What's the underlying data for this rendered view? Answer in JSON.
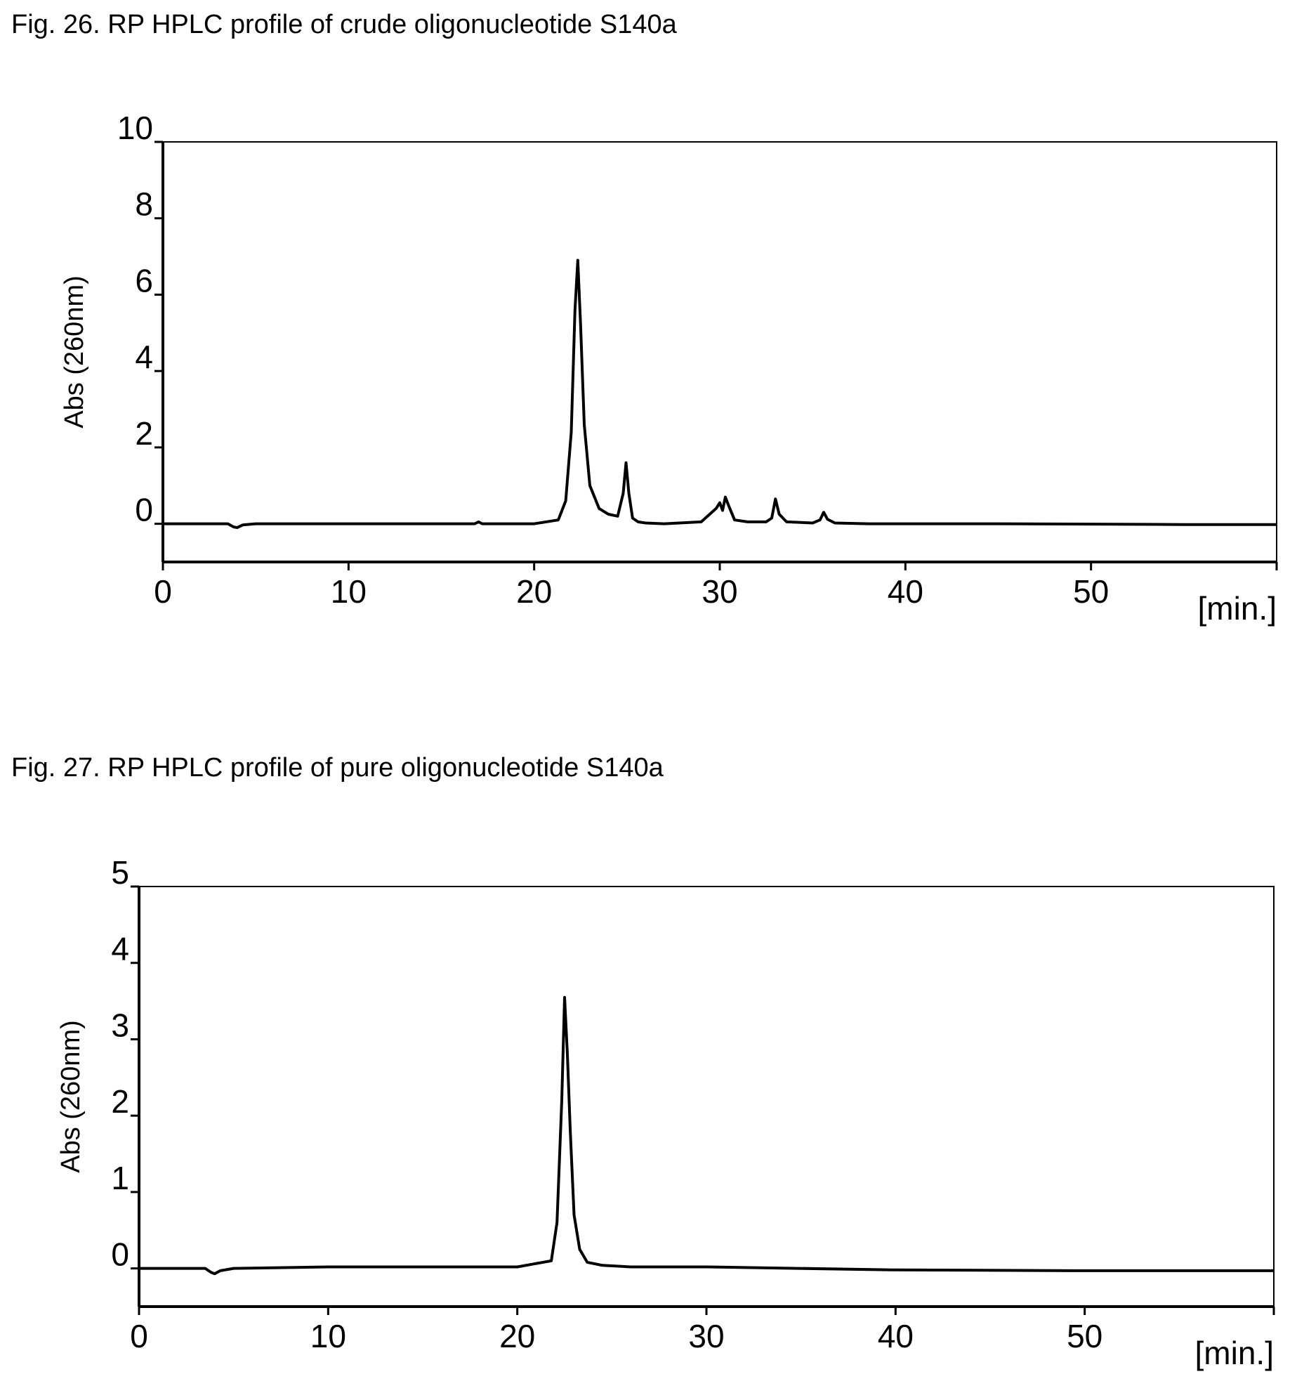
{
  "figures": [
    {
      "title": "Fig. 26. RP HPLC profile of crude oligonucleotide S140a"
    },
    {
      "title": "Fig. 27. RP HPLC profile of pure oligonucleotide S140a"
    }
  ],
  "chart_data": [
    {
      "type": "line",
      "title": "Fig. 26. RP HPLC profile of crude oligonucleotide S140a",
      "xlabel": "[min.]",
      "ylabel": "Abs (260nm)",
      "xlim": [
        0,
        60
      ],
      "ylim": [
        -1,
        10
      ],
      "xticks": [
        0,
        10,
        20,
        30,
        40,
        50
      ],
      "yticks": [
        0,
        2,
        4,
        6,
        8,
        10
      ],
      "grid": false,
      "series": [
        {
          "x": [
            0,
            3.5,
            3.8,
            4.0,
            4.3,
            5,
            10,
            15,
            16.8,
            17,
            17.2,
            20,
            21.3,
            21.7,
            22.0,
            22.2,
            22.35,
            22.5,
            22.7,
            23.0,
            23.5,
            24.0,
            24.5,
            24.8,
            24.95,
            25.1,
            25.3,
            25.6,
            26,
            27,
            29,
            29.8,
            30.0,
            30.15,
            30.3,
            30.5,
            30.8,
            31.5,
            32.5,
            32.8,
            33.0,
            33.2,
            33.6,
            35.0,
            35.4,
            35.6,
            35.8,
            36.2,
            38,
            45,
            55,
            60
          ],
          "y": [
            0,
            0,
            -0.08,
            -0.1,
            -0.03,
            0,
            0,
            0,
            0,
            0.05,
            0,
            0,
            0.1,
            0.6,
            2.4,
            5.6,
            6.9,
            5.2,
            2.6,
            1.0,
            0.4,
            0.25,
            0.2,
            0.8,
            1.6,
            0.8,
            0.15,
            0.05,
            0.02,
            0,
            0.05,
            0.4,
            0.55,
            0.35,
            0.7,
            0.45,
            0.1,
            0.05,
            0.05,
            0.15,
            0.65,
            0.25,
            0.05,
            0.02,
            0.1,
            0.3,
            0.12,
            0.02,
            0,
            0,
            -0.02,
            -0.02
          ]
        }
      ]
    },
    {
      "type": "line",
      "title": "Fig. 27. RP HPLC profile of pure oligonucleotide S140a",
      "xlabel": "[min.]",
      "ylabel": "Abs (260nm)",
      "xlim": [
        0,
        60
      ],
      "ylim": [
        -0.5,
        5
      ],
      "xticks": [
        0,
        10,
        20,
        30,
        40,
        50
      ],
      "yticks": [
        0,
        1,
        2,
        3,
        4,
        5
      ],
      "grid": false,
      "series": [
        {
          "x": [
            0,
            3.5,
            3.8,
            4.0,
            4.3,
            5,
            10,
            15,
            20,
            21.8,
            22.1,
            22.35,
            22.5,
            22.65,
            22.8,
            23.0,
            23.3,
            23.7,
            24.5,
            26,
            30,
            40,
            50,
            60
          ],
          "y": [
            0,
            0,
            -0.05,
            -0.07,
            -0.03,
            0,
            0.02,
            0.02,
            0.02,
            0.1,
            0.6,
            2.2,
            3.55,
            2.8,
            1.8,
            0.7,
            0.25,
            0.08,
            0.04,
            0.02,
            0.02,
            -0.02,
            -0.03,
            -0.03
          ]
        }
      ]
    }
  ]
}
